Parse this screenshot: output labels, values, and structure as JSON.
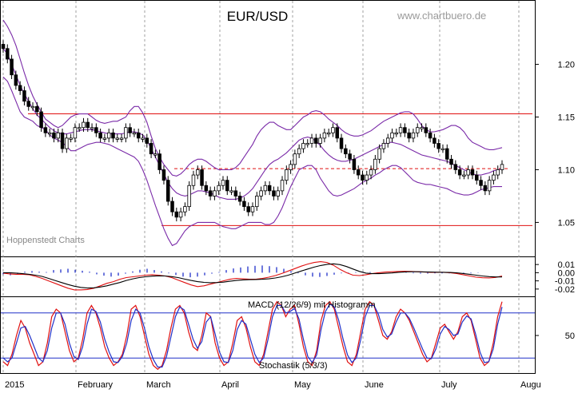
{
  "chart_data": [
    {
      "type": "candlestick",
      "title": "EUR/USD",
      "source": "www.chartbuero.de",
      "credit": "Hoppenstedt Charts",
      "x_labels": [
        "2015",
        "February",
        "March",
        "April",
        "May",
        "June",
        "July",
        "Augu"
      ],
      "y_ticks": [
        "1.20",
        "1.15",
        "1.10",
        "1.05"
      ],
      "ylim": [
        1.02,
        1.255
      ],
      "horizontal_lines": [
        {
          "style": "solid",
          "color": "#e01010",
          "value": 1.153
        },
        {
          "style": "dashed",
          "color": "#e01010",
          "value": 1.101
        },
        {
          "style": "solid",
          "color": "#e01010",
          "value": 1.047
        }
      ],
      "overlay": "Bollinger Bands",
      "series": [
        {
          "type": "ohlc",
          "name": "EUR/USD",
          "close": [
            1.215,
            1.205,
            1.19,
            1.18,
            1.175,
            1.165,
            1.16,
            1.16,
            1.155,
            1.14,
            1.135,
            1.135,
            1.13,
            1.135,
            1.12,
            1.13,
            1.13,
            1.14,
            1.14,
            1.145,
            1.14,
            1.14,
            1.135,
            1.13,
            1.13,
            1.135,
            1.13,
            1.13,
            1.13,
            1.14,
            1.135,
            1.135,
            1.13,
            1.13,
            1.125,
            1.115,
            1.115,
            1.1,
            1.09,
            1.07,
            1.06,
            1.055,
            1.06,
            1.065,
            1.085,
            1.095,
            1.1,
            1.085,
            1.08,
            1.075,
            1.08,
            1.085,
            1.09,
            1.08,
            1.08,
            1.075,
            1.07,
            1.065,
            1.06,
            1.065,
            1.075,
            1.08,
            1.085,
            1.08,
            1.075,
            1.08,
            1.09,
            1.1,
            1.105,
            1.115,
            1.12,
            1.125,
            1.125,
            1.13,
            1.125,
            1.13,
            1.135,
            1.135,
            1.14,
            1.13,
            1.12,
            1.115,
            1.11,
            1.1,
            1.095,
            1.09,
            1.095,
            1.1,
            1.11,
            1.12,
            1.125,
            1.13,
            1.135,
            1.135,
            1.14,
            1.135,
            1.13,
            1.135,
            1.14,
            1.14,
            1.135,
            1.13,
            1.125,
            1.12,
            1.12,
            1.11,
            1.105,
            1.1,
            1.095,
            1.095,
            1.1,
            1.095,
            1.09,
            1.085,
            1.08,
            1.09,
            1.095,
            1.1,
            1.105
          ]
        },
        {
          "type": "line",
          "name": "upper band",
          "color": "#7a2aa8",
          "values": [
            1.242,
            1.236,
            1.228,
            1.218,
            1.205,
            1.192,
            1.18,
            1.17,
            1.162,
            1.155,
            1.148,
            1.145,
            1.142,
            1.14,
            1.142,
            1.146,
            1.15,
            1.152,
            1.153,
            1.153,
            1.153,
            1.15,
            1.147,
            1.145,
            1.144,
            1.145,
            1.146,
            1.146,
            1.148,
            1.15,
            1.156,
            1.16,
            1.16,
            1.154,
            1.145,
            1.132,
            1.12,
            1.112,
            1.105,
            1.1,
            1.095,
            1.094,
            1.096,
            1.1,
            1.105,
            1.108,
            1.11,
            1.11,
            1.108,
            1.105,
            1.102,
            1.1,
            1.1,
            1.1,
            1.1,
            1.102,
            1.106,
            1.112,
            1.118,
            1.124,
            1.132,
            1.138,
            1.142,
            1.145,
            1.145,
            1.142,
            1.14,
            1.138,
            1.138,
            1.142,
            1.146,
            1.15,
            1.152,
            1.155,
            1.156,
            1.155,
            1.152,
            1.148,
            1.145,
            1.142,
            1.138,
            1.135,
            1.133,
            1.132,
            1.132,
            1.133,
            1.135,
            1.137,
            1.14,
            1.143,
            1.146,
            1.148,
            1.15,
            1.152,
            1.154,
            1.155,
            1.155,
            1.153,
            1.148,
            1.142,
            1.138,
            1.136,
            1.136,
            1.137,
            1.138,
            1.14,
            1.142,
            1.142,
            1.14,
            1.136,
            1.13,
            1.126,
            1.124,
            1.122,
            1.12,
            1.119,
            1.119,
            1.12,
            1.121
          ]
        },
        {
          "type": "line",
          "name": "middle band",
          "color": "#7a2aa8",
          "values": [
            1.215,
            1.21,
            1.2,
            1.19,
            1.18,
            1.172,
            1.165,
            1.158,
            1.152,
            1.148,
            1.144,
            1.14,
            1.137,
            1.135,
            1.134,
            1.134,
            1.135,
            1.136,
            1.137,
            1.138,
            1.138,
            1.138,
            1.137,
            1.136,
            1.135,
            1.134,
            1.134,
            1.134,
            1.134,
            1.135,
            1.136,
            1.136,
            1.135,
            1.133,
            1.128,
            1.12,
            1.112,
            1.104,
            1.096,
            1.088,
            1.082,
            1.078,
            1.076,
            1.075,
            1.076,
            1.078,
            1.08,
            1.08,
            1.079,
            1.078,
            1.076,
            1.074,
            1.073,
            1.072,
            1.072,
            1.072,
            1.073,
            1.075,
            1.078,
            1.082,
            1.088,
            1.094,
            1.1,
            1.105,
            1.108,
            1.11,
            1.113,
            1.116,
            1.12,
            1.124,
            1.128,
            1.13,
            1.131,
            1.13,
            1.127,
            1.123,
            1.118,
            1.114,
            1.111,
            1.109,
            1.108,
            1.108,
            1.109,
            1.11,
            1.112,
            1.114,
            1.116,
            1.118,
            1.12,
            1.122,
            1.124,
            1.126,
            1.126,
            1.125,
            1.124,
            1.122,
            1.12,
            1.118,
            1.116,
            1.114,
            1.113,
            1.112,
            1.111,
            1.11,
            1.109,
            1.108,
            1.106,
            1.104,
            1.102,
            1.1,
            1.098,
            1.096,
            1.095,
            1.095,
            1.096,
            1.097,
            1.099,
            1.1,
            1.101
          ]
        },
        {
          "type": "line",
          "name": "lower band",
          "color": "#7a2aa8",
          "values": [
            1.188,
            1.184,
            1.175,
            1.165,
            1.155,
            1.15,
            1.148,
            1.146,
            1.142,
            1.14,
            1.138,
            1.133,
            1.13,
            1.128,
            1.126,
            1.122,
            1.118,
            1.118,
            1.12,
            1.122,
            1.124,
            1.125,
            1.126,
            1.126,
            1.125,
            1.124,
            1.122,
            1.12,
            1.118,
            1.116,
            1.114,
            1.112,
            1.108,
            1.1,
            1.09,
            1.078,
            1.066,
            1.055,
            1.044,
            1.035,
            1.028,
            1.03,
            1.036,
            1.042,
            1.046,
            1.048,
            1.05,
            1.05,
            1.05,
            1.05,
            1.05,
            1.048,
            1.046,
            1.045,
            1.044,
            1.044,
            1.046,
            1.048,
            1.05,
            1.05,
            1.05,
            1.05,
            1.048,
            1.048,
            1.05,
            1.056,
            1.064,
            1.074,
            1.084,
            1.092,
            1.1,
            1.102,
            1.104,
            1.104,
            1.1,
            1.092,
            1.086,
            1.08,
            1.076,
            1.075,
            1.076,
            1.078,
            1.08,
            1.082,
            1.085,
            1.088,
            1.09,
            1.092,
            1.095,
            1.097,
            1.1,
            1.102,
            1.104,
            1.104,
            1.102,
            1.098,
            1.094,
            1.09,
            1.088,
            1.087,
            1.086,
            1.086,
            1.085,
            1.084,
            1.083,
            1.082,
            1.08,
            1.078,
            1.077,
            1.076,
            1.076,
            1.077,
            1.079,
            1.081,
            1.082,
            1.083,
            1.084,
            1.084,
            1.084
          ]
        }
      ]
    },
    {
      "type": "line",
      "title": "MACD (12/26/9) mit Histogramm",
      "y_ticks": [
        "0.01",
        "0.00",
        "-0.01",
        "-0.02"
      ],
      "ylim": [
        -0.026,
        0.016
      ],
      "series": [
        {
          "name": "MACD",
          "color": "#e01010",
          "values": [
            -0.0005,
            -0.0015,
            -0.002,
            -0.002,
            -0.0025,
            -0.0045,
            -0.007,
            -0.01,
            -0.013,
            -0.016,
            -0.019,
            -0.021,
            -0.021,
            -0.0205,
            -0.019,
            -0.016,
            -0.013,
            -0.011,
            -0.008,
            -0.006,
            -0.005,
            -0.004,
            -0.003,
            -0.0025,
            -0.003,
            -0.004,
            -0.006,
            -0.009,
            -0.012,
            -0.015,
            -0.017,
            -0.016,
            -0.014,
            -0.012,
            -0.01,
            -0.008,
            -0.007,
            -0.0075,
            -0.008,
            -0.008,
            -0.007,
            -0.0055,
            -0.0035,
            -0.001,
            0.002,
            0.005,
            0.008,
            0.0105,
            0.0125,
            0.0135,
            0.0125,
            0.009,
            0.004,
            0.0,
            -0.003,
            -0.0035,
            -0.0025,
            -0.001,
            0.0,
            0.0008,
            0.0012,
            0.0015,
            0.0017,
            0.0015,
            0.0012,
            0.0008,
            0.0005,
            0.0005,
            0.0005,
            0.0,
            -0.001,
            -0.0025,
            -0.004,
            -0.0055,
            -0.0062,
            -0.0065,
            -0.0058,
            -0.004
          ]
        },
        {
          "name": "Signal",
          "color": "#000000",
          "values": [
            0.0,
            0.0,
            -0.0005,
            -0.0012,
            -0.002,
            -0.003,
            -0.0045,
            -0.007,
            -0.0095,
            -0.012,
            -0.0145,
            -0.0165,
            -0.018,
            -0.0188,
            -0.0185,
            -0.0175,
            -0.016,
            -0.014,
            -0.012,
            -0.0095,
            -0.0075,
            -0.006,
            -0.005,
            -0.0042,
            -0.0038,
            -0.004,
            -0.0048,
            -0.006,
            -0.0078,
            -0.0095,
            -0.011,
            -0.0118,
            -0.0122,
            -0.012,
            -0.0115,
            -0.0105,
            -0.0095,
            -0.0088,
            -0.0085,
            -0.0083,
            -0.008,
            -0.0075,
            -0.0065,
            -0.005,
            -0.003,
            -0.0005,
            0.002,
            0.0045,
            0.0068,
            0.0088,
            0.0102,
            0.0108,
            0.0098,
            0.0075,
            0.0045,
            0.0015,
            -0.0005,
            -0.0012,
            -0.0012,
            -0.0008,
            -0.0003,
            0.0005,
            0.001,
            0.0012,
            0.0012,
            0.001,
            0.0008,
            0.0006,
            0.0005,
            0.0003,
            -0.0002,
            -0.001,
            -0.002,
            -0.003,
            -0.004,
            -0.0048,
            -0.0052,
            -0.0052
          ]
        },
        {
          "name": "Histogramm",
          "type": "bar",
          "color": "#2030c8",
          "values": [
            -0.0005,
            -0.0008,
            -0.0004,
            0.0003,
            0.0005,
            0.0003,
            0.0002,
            0.0008,
            0.001,
            0.0012,
            0.0009,
            0.0006,
            0.0003,
            -0.0005,
            -0.0009,
            -0.0012,
            -0.0009,
            -0.0003,
            0.0004,
            0.0009,
            0.0012,
            0.0008,
            0.0004,
            -0.0002,
            -0.0007,
            -0.0012,
            -0.0014,
            -0.0012,
            -0.0008,
            -0.0003,
            0.0002,
            0.0008,
            0.0013,
            0.0016,
            0.0019,
            0.0021,
            0.0022,
            0.002,
            0.0017,
            0.0012,
            0.0005,
            -0.0002,
            -0.0008,
            -0.0012,
            -0.0013,
            -0.001,
            -0.0006,
            -0.0002,
            0.0001,
            0.0002,
            0.0003,
            0.0002,
            0.0001,
            0.0,
            0.0,
            0.0,
            -0.0001,
            -0.0002,
            -0.0003,
            -0.0003,
            -0.0002,
            -0.0002,
            -0.0002,
            -0.0002,
            -0.0002,
            -0.0002,
            -0.0001,
            0.0,
            0.0
          ]
        }
      ]
    },
    {
      "type": "line",
      "title": "Stochastik (5/3/3)",
      "y_ticks": [
        "50"
      ],
      "ylim": [
        0,
        100
      ],
      "reference_lines": [
        80,
        20
      ],
      "series": [
        {
          "name": "%K",
          "color": "#e01010",
          "values": [
            15,
            10,
            25,
            50,
            70,
            60,
            40,
            25,
            10,
            15,
            40,
            75,
            85,
            80,
            55,
            30,
            15,
            20,
            45,
            80,
            90,
            80,
            60,
            35,
            20,
            10,
            15,
            25,
            50,
            85,
            90,
            75,
            50,
            25,
            10,
            5,
            10,
            30,
            60,
            85,
            90,
            80,
            55,
            35,
            30,
            50,
            80,
            75,
            40,
            20,
            10,
            15,
            40,
            70,
            75,
            60,
            35,
            15,
            10,
            25,
            55,
            85,
            95,
            90,
            75,
            85,
            90,
            65,
            35,
            15,
            10,
            30,
            70,
            90,
            95,
            85,
            60,
            35,
            15,
            10,
            25,
            55,
            85,
            95,
            90,
            70,
            50,
            45,
            55,
            75,
            85,
            80,
            70,
            55,
            40,
            25,
            15,
            20,
            40,
            60,
            65,
            55,
            45,
            55,
            75,
            80,
            70,
            45,
            20,
            10,
            15,
            40,
            75,
            95
          ]
        },
        {
          "name": "%D",
          "color": "#2030c8",
          "values": [
            20,
            15,
            20,
            40,
            60,
            62,
            50,
            35,
            20,
            15,
            30,
            60,
            80,
            80,
            65,
            40,
            22,
            18,
            35,
            65,
            85,
            82,
            68,
            45,
            28,
            15,
            14,
            22,
            40,
            70,
            85,
            80,
            60,
            35,
            18,
            8,
            8,
            22,
            48,
            75,
            88,
            84,
            65,
            45,
            33,
            42,
            68,
            75,
            52,
            28,
            15,
            14,
            30,
            58,
            70,
            65,
            45,
            25,
            14,
            20,
            45,
            75,
            90,
            90,
            80,
            82,
            86,
            72,
            45,
            22,
            14,
            24,
            58,
            82,
            92,
            88,
            70,
            45,
            24,
            14,
            20,
            45,
            75,
            90,
            90,
            78,
            58,
            48,
            52,
            68,
            80,
            80,
            73,
            60,
            46,
            32,
            20,
            19,
            32,
            52,
            62,
            58,
            50,
            52,
            68,
            76,
            72,
            52,
            28,
            14,
            15,
            32,
            65,
            88
          ]
        }
      ]
    }
  ]
}
